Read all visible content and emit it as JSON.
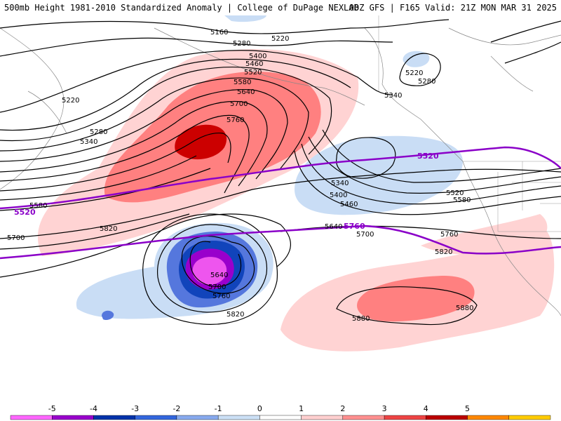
{
  "header": {
    "title_left": "500mb Height 1981-2010 Standardized Anomaly | College of DuPage NEXLAB",
    "title_right": "00Z GFS | F165 Valid: 21Z MON MAR 31 2025"
  },
  "contour_labels": [
    "5160",
    "5220",
    "5280",
    "5400",
    "5460",
    "5520",
    "5580",
    "5640",
    "5700",
    "5760",
    "5220",
    "5280",
    "5340",
    "5220",
    "5280",
    "5340",
    "5340",
    "5400",
    "5460",
    "5520",
    "5580",
    "5640",
    "5700",
    "5760",
    "5580",
    "5700",
    "5820",
    "5640",
    "5700",
    "5760",
    "5820",
    "5820",
    "5880",
    "5880"
  ],
  "purple_contour_labels": [
    "5520",
    "5520",
    "5760"
  ],
  "colorbar": {
    "ticks": [
      "-5",
      "-4",
      "-3",
      "-2",
      "-1",
      "0",
      "1",
      "2",
      "3",
      "4",
      "5"
    ],
    "colors": [
      "#ff66ff",
      "#9900cc",
      "#0033aa",
      "#3366dd",
      "#88aaee",
      "#cce0f5",
      "#ffffff",
      "#ffd0d0",
      "#ff9090",
      "#ee4444",
      "#bb0000",
      "#ff8800",
      "#ffcc00"
    ]
  },
  "palette": {
    "neg5": "#ee55ee",
    "neg4": "#9900cc",
    "neg3": "#1144bb",
    "neg2": "#5577dd",
    "neg1": "#c9ddf5",
    "pos1": "#ffd3d3",
    "pos2": "#ff8080",
    "pos3": "#cc0000",
    "purple_line": "#8a00c8"
  }
}
